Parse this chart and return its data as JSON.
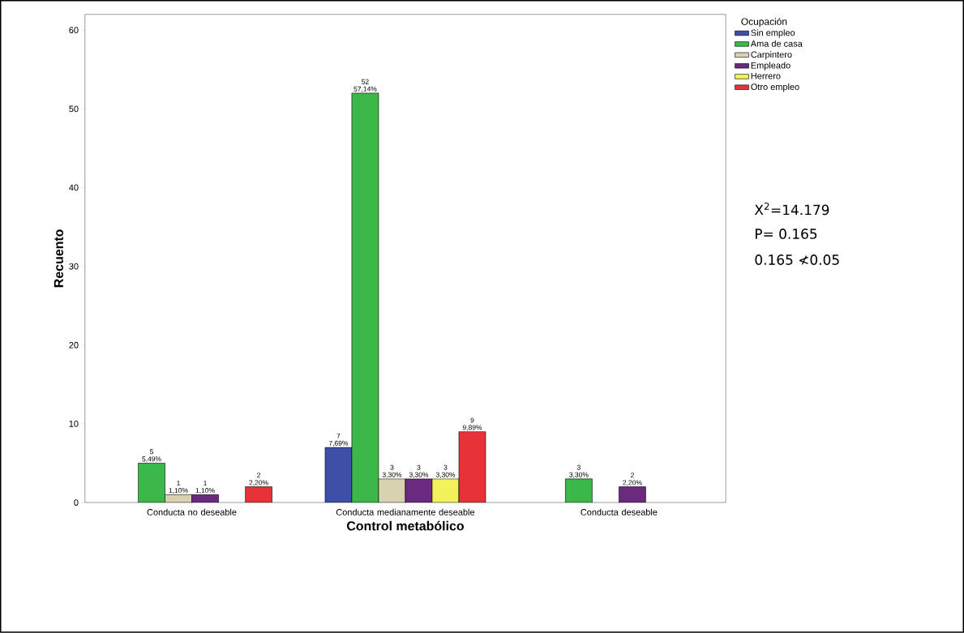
{
  "chart_data": {
    "type": "bar",
    "xlabel": "Control metabólico",
    "ylabel": "Recuento",
    "legend_title": "Ocupación",
    "categories": [
      "Conducta no deseable",
      "Conducta medianamente deseable",
      "Conducta deseable"
    ],
    "series": [
      {
        "name": "Sin empleo",
        "color": "#3e4fa8",
        "values": [
          null,
          7,
          null
        ],
        "value_labels": [
          null,
          "7 7,69%",
          null
        ]
      },
      {
        "name": "Ama de casa",
        "color": "#3cb84a",
        "values": [
          5,
          52,
          3
        ],
        "value_labels": [
          "5 5,49%",
          "52 57,14%",
          "3 3,30%"
        ]
      },
      {
        "name": "Carpintero",
        "color": "#d8d2b0",
        "values": [
          1,
          3,
          null
        ],
        "value_labels": [
          "1 1,10%",
          "3 3,30%",
          null
        ]
      },
      {
        "name": "Empleado",
        "color": "#6a2a7e",
        "values": [
          1,
          3,
          2
        ],
        "value_labels": [
          "1 1,10%",
          "3 3,30%",
          "2 2,20%"
        ]
      },
      {
        "name": "Herrero",
        "color": "#f2f25a",
        "values": [
          null,
          3,
          null
        ],
        "value_labels": [
          null,
          "3 3,30%",
          null
        ]
      },
      {
        "name": "Otro empleo",
        "color": "#e8323a",
        "values": [
          2,
          9,
          null
        ],
        "value_labels": [
          "2 2,20%",
          "9 9,89%",
          null
        ]
      }
    ],
    "ylim": [
      0,
      62
    ],
    "yticks": [
      0,
      10,
      20,
      30,
      40,
      50,
      60
    ],
    "legend": "top right",
    "annotations": [
      "X$^{2}$=14.179",
      "P= 0.165",
      "0.165 ≮0.05"
    ]
  }
}
